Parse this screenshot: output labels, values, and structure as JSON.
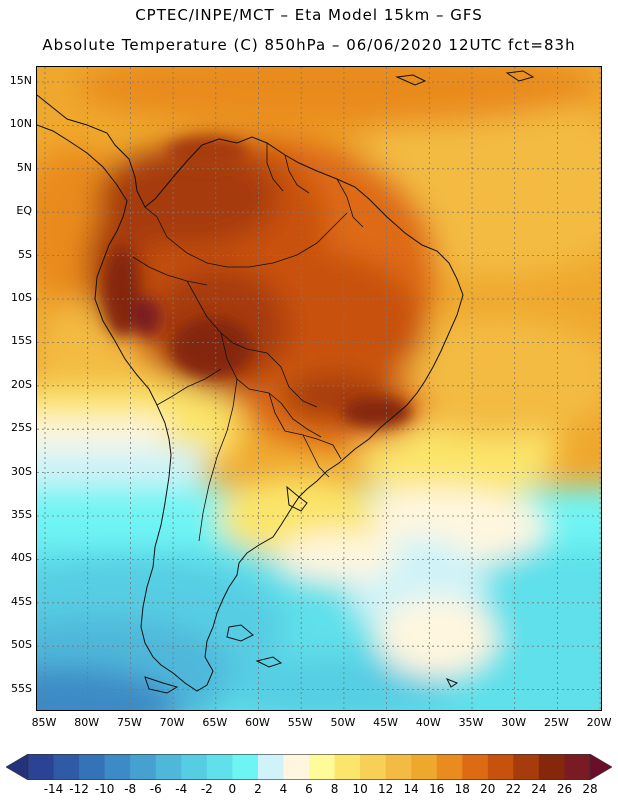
{
  "title": {
    "line1": "CPTEC/INPE/MCT –  Eta Model 15km – GFS",
    "line2": "Absolute Temperature (C) 850hPa – 06/06/2020 12UTC fct=83h"
  },
  "axes": {
    "lat_labels": [
      "15N",
      "10N",
      "5N",
      "EQ",
      "5S",
      "10S",
      "15S",
      "20S",
      "25S",
      "30S",
      "35S",
      "40S",
      "45S",
      "50S",
      "55S"
    ],
    "lon_labels": [
      "85W",
      "80W",
      "75W",
      "70W",
      "65W",
      "60W",
      "55W",
      "50W",
      "45W",
      "40W",
      "35W",
      "30W",
      "25W",
      "20W"
    ]
  },
  "colorbar": {
    "tick_labels": [
      "-14",
      "-12",
      "-10",
      "-8",
      "-6",
      "-4",
      "-2",
      "0",
      "2",
      "4",
      "6",
      "8",
      "10",
      "12",
      "14",
      "16",
      "18",
      "20",
      "22",
      "24",
      "26",
      "28"
    ],
    "colors": [
      "#2a4394",
      "#2f5aa6",
      "#3573b8",
      "#3d8bc6",
      "#47a1d0",
      "#4fb7da",
      "#57cde3",
      "#5fe0ea",
      "#6ff4f4",
      "#cff3f8",
      "#fff6df",
      "#fffa9a",
      "#fbe56b",
      "#f7d057",
      "#f3bb43",
      "#efa82e",
      "#e98b1f",
      "#de6b14",
      "#c8510d",
      "#a63b0b",
      "#84270a",
      "#7a1a22"
    ],
    "under_color": "#23327a",
    "over_color": "#6a0e2a"
  }
}
